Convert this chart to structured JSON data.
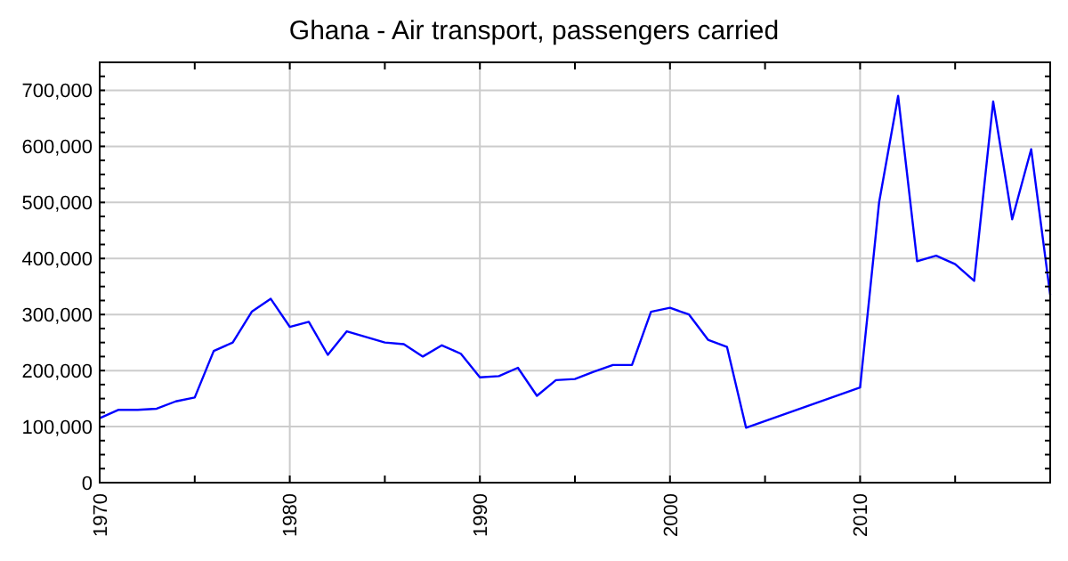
{
  "chart_data": {
    "type": "line",
    "title": "Ghana - Air transport, passengers carried",
    "x": [
      1970,
      1971,
      1972,
      1973,
      1974,
      1975,
      1976,
      1977,
      1978,
      1979,
      1980,
      1981,
      1982,
      1983,
      1984,
      1985,
      1986,
      1987,
      1988,
      1989,
      1990,
      1991,
      1992,
      1993,
      1994,
      1995,
      1996,
      1997,
      1998,
      1999,
      2000,
      2001,
      2002,
      2003,
      2004,
      2010,
      2011,
      2012,
      2013,
      2014,
      2015,
      2016,
      2017,
      2018,
      2019,
      2020
    ],
    "series": [
      {
        "color": "#0000ff",
        "values": [
          115000,
          130000,
          130000,
          132000,
          145000,
          152000,
          235000,
          250000,
          305000,
          328000,
          278000,
          287000,
          228000,
          270000,
          260000,
          250000,
          247000,
          225000,
          245000,
          230000,
          188000,
          190000,
          205000,
          155000,
          183000,
          185000,
          198000,
          210000,
          210000,
          305000,
          312000,
          300000,
          255000,
          242000,
          98000,
          170000,
          500000,
          690000,
          395000,
          405000,
          390000,
          360000,
          680000,
          470000,
          595000,
          335000
        ]
      }
    ],
    "xlim": [
      1970,
      2020
    ],
    "xticks": [
      1970,
      1980,
      1990,
      2000,
      2010
    ],
    "ylim": [
      0,
      750000
    ],
    "yticks": [
      {
        "value": 0,
        "label": "0"
      },
      {
        "value": 100000,
        "label": "100,000"
      },
      {
        "value": 200000,
        "label": "200,000"
      },
      {
        "value": 300000,
        "label": "300,000"
      },
      {
        "value": 400000,
        "label": "400,000"
      },
      {
        "value": 500000,
        "label": "500,000"
      },
      {
        "value": 600000,
        "label": "600,000"
      },
      {
        "value": 700000,
        "label": "700,000"
      }
    ],
    "grid": true,
    "line_style": "solid"
  }
}
